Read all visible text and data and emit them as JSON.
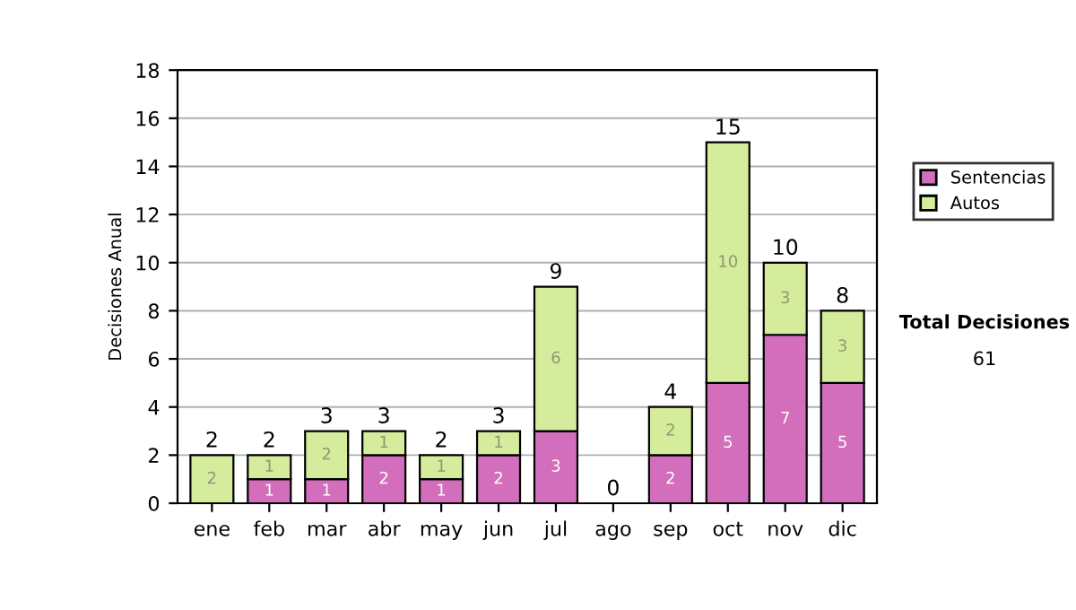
{
  "chart_data": {
    "type": "bar",
    "ylabel": "Decisiones Anual",
    "categories": [
      "ene",
      "feb",
      "mar",
      "abr",
      "may",
      "jun",
      "jul",
      "ago",
      "sep",
      "oct",
      "nov",
      "dic"
    ],
    "stacked": true,
    "series": [
      {
        "name": "Sentencias",
        "color": "#d36ebd",
        "values": [
          0,
          1,
          1,
          2,
          1,
          2,
          3,
          0,
          2,
          5,
          7,
          5
        ],
        "value_labels": [
          null,
          "1",
          "1",
          "2",
          "1",
          "2",
          "3",
          null,
          "2",
          "5",
          "7",
          "5"
        ]
      },
      {
        "name": "Autos",
        "color": "#d5ec9c",
        "values": [
          2,
          1,
          2,
          1,
          1,
          1,
          6,
          0,
          2,
          10,
          3,
          3
        ],
        "value_labels": [
          "2",
          "1",
          "2",
          "1",
          "1",
          "1",
          "6",
          null,
          "2",
          "10",
          "3",
          "3"
        ]
      }
    ],
    "totals": [
      "2",
      "2",
      "3",
      "3",
      "2",
      "3",
      "9",
      "0",
      "4",
      "15",
      "10",
      "8"
    ],
    "ylim": [
      0,
      18
    ],
    "yticks": [
      0,
      2,
      4,
      6,
      8,
      10,
      12,
      14,
      16,
      18
    ],
    "grid": "y",
    "legend": "right",
    "annotations": [
      "Total Decisiones",
      "61"
    ]
  }
}
